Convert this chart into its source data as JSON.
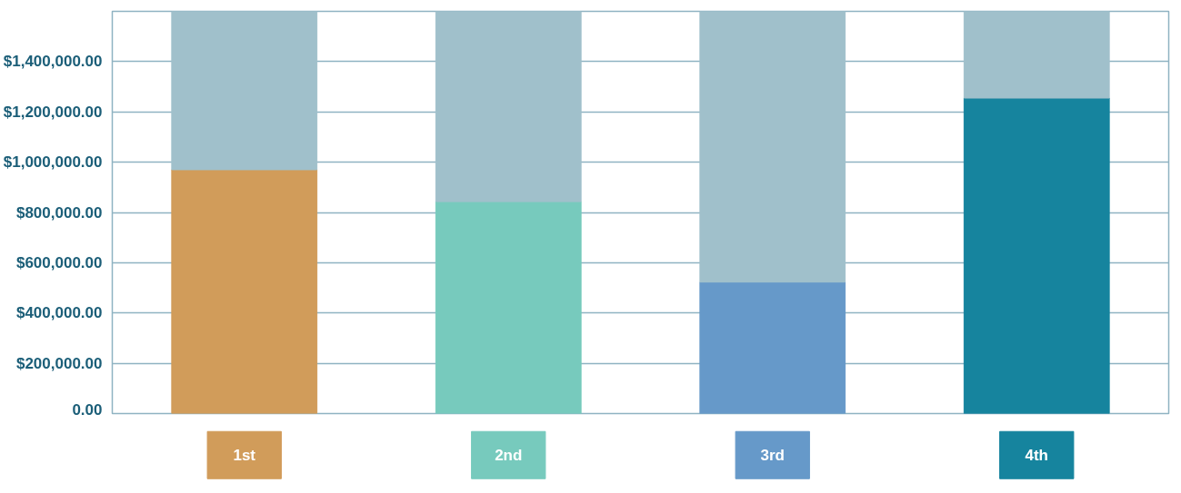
{
  "chart_data": {
    "type": "bar",
    "categories": [
      "1st",
      "2nd",
      "3rd",
      "4th"
    ],
    "stacked": true,
    "series": [
      {
        "colors": [
          "#d19c5a",
          "#77cabd",
          "#6699c9",
          "#16849e"
        ],
        "values": [
          970000,
          843000,
          523000,
          1255000
        ]
      },
      {
        "color": "#a0c0cb",
        "values": [
          630000,
          757000,
          1077000,
          345000
        ]
      }
    ],
    "ylim": [
      0,
      1600000
    ],
    "yticks": [
      {
        "value": 0,
        "label": "0.00"
      },
      {
        "value": 200000,
        "label": "$200,000.00"
      },
      {
        "value": 400000,
        "label": "$400,000.00"
      },
      {
        "value": 600000,
        "label": "$600,000.00"
      },
      {
        "value": 800000,
        "label": "$800,000.00"
      },
      {
        "value": 1000000,
        "label": "$1,000,000.00"
      },
      {
        "value": 1200000,
        "label": "$1,200,000.00"
      },
      {
        "value": 1400000,
        "label": "$1,400,000.00"
      }
    ],
    "grid": "y"
  }
}
